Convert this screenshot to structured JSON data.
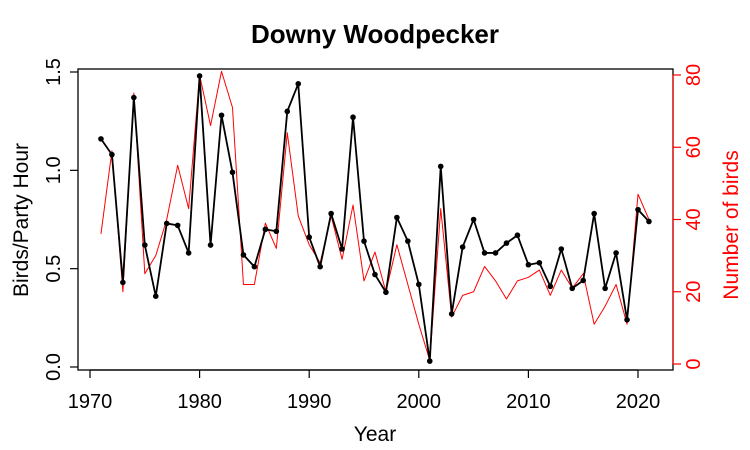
{
  "chart_data": {
    "type": "line",
    "title": "Downy Woodpecker",
    "xlabel": "Year",
    "ylabel": "Birds/Party Hour",
    "ylabel_right": "Number of birds",
    "xlim": [
      1970,
      2023
    ],
    "ylim": [
      0,
      1.5
    ],
    "ylim_right": [
      0,
      80
    ],
    "x_ticks": [
      1970,
      1980,
      1990,
      2000,
      2010,
      2020
    ],
    "y_ticks": [
      0.0,
      0.5,
      1.0,
      1.5
    ],
    "y_tick_labels": [
      "0.0",
      "0.5",
      "1.0",
      "1.5"
    ],
    "y_right_ticks": [
      0,
      20,
      40,
      60,
      80
    ],
    "grid": false,
    "series": [
      {
        "axis": "left",
        "color": "#000000",
        "markers": true,
        "x": [
          1971,
          1972,
          1973,
          1974,
          1975,
          1976,
          1977,
          1978,
          1979,
          1980,
          1981,
          1982,
          1983,
          1984,
          1985,
          1986,
          1987,
          1988,
          1989,
          1990,
          1991,
          1992,
          1993,
          1994,
          1995,
          1996,
          1997,
          1998,
          1999,
          2000,
          2001,
          2002,
          2003,
          2004,
          2005,
          2006,
          2007,
          2008,
          2009,
          2010,
          2011,
          2012,
          2013,
          2014,
          2015,
          2016,
          2017,
          2018,
          2019,
          2020,
          2021
        ],
        "values": [
          1.16,
          1.08,
          0.43,
          1.37,
          0.62,
          0.36,
          0.73,
          0.72,
          0.58,
          1.48,
          0.62,
          1.28,
          0.99,
          0.57,
          0.51,
          0.7,
          0.69,
          1.3,
          1.44,
          0.66,
          0.51,
          0.78,
          0.6,
          1.27,
          0.64,
          0.47,
          0.38,
          0.76,
          0.64,
          0.42,
          0.03,
          1.02,
          0.27,
          0.61,
          0.75,
          0.58,
          0.58,
          0.63,
          0.67,
          0.52,
          0.53,
          0.41,
          0.6,
          0.4,
          0.44,
          0.78,
          0.4,
          0.58,
          0.24,
          0.8,
          0.74
        ]
      },
      {
        "axis": "right",
        "color": "#ff0000",
        "markers": false,
        "x": [
          1971,
          1972,
          1973,
          1974,
          1975,
          1976,
          1977,
          1978,
          1979,
          1980,
          1981,
          1982,
          1983,
          1984,
          1985,
          1986,
          1987,
          1988,
          1989,
          1990,
          1991,
          1992,
          1993,
          1994,
          1995,
          1996,
          1997,
          1998,
          1999,
          2000,
          2001,
          2002,
          2003,
          2004,
          2005,
          2006,
          2007,
          2008,
          2009,
          2010,
          2011,
          2012,
          2013,
          2014,
          2015,
          2016,
          2017,
          2018,
          2019,
          2020,
          2021
        ],
        "values": [
          36,
          59,
          20,
          75,
          25,
          30,
          40,
          55,
          43,
          80,
          66,
          81,
          71,
          22,
          22,
          39,
          32,
          64,
          41,
          33,
          28,
          41,
          29,
          44,
          23,
          31,
          20,
          33,
          22,
          11,
          1,
          43,
          13,
          19,
          20,
          27,
          23,
          18,
          23,
          24,
          26,
          19,
          26,
          21,
          25,
          11,
          16,
          22,
          11,
          47,
          40
        ]
      }
    ]
  }
}
